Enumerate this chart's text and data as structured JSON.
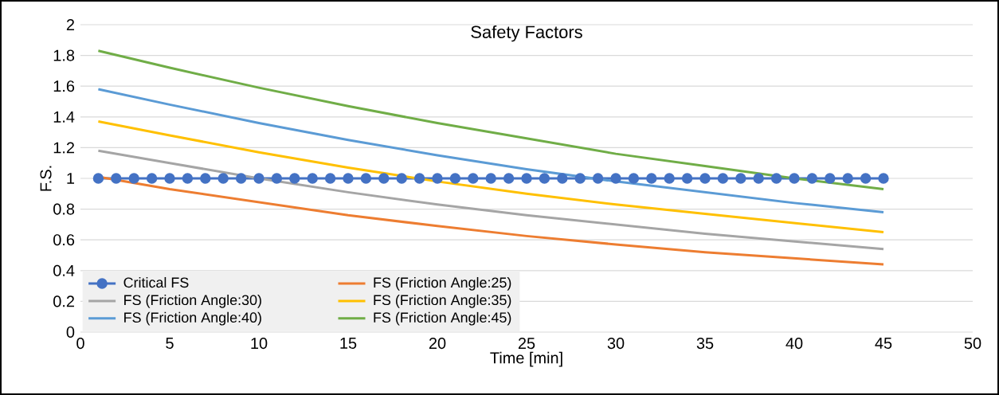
{
  "chart_data": {
    "type": "line",
    "title": "Safety Factors",
    "xlabel": "Time [min]",
    "ylabel": "F.S.",
    "xlim": [
      0,
      50
    ],
    "xticks": [
      0,
      5,
      10,
      15,
      20,
      25,
      30,
      35,
      40,
      45,
      50
    ],
    "ylim": [
      0,
      2
    ],
    "yticks": [
      0,
      0.2,
      0.4,
      0.6,
      0.8,
      1,
      1.2,
      1.4,
      1.6,
      1.8,
      2
    ],
    "grid": "y",
    "legend": "bottom left",
    "series": [
      {
        "name": "Critical FS",
        "color": "#4472c4",
        "marker": "circle",
        "x": [
          1,
          2,
          3,
          4,
          5,
          6,
          7,
          8,
          9,
          10,
          11,
          12,
          13,
          14,
          15,
          16,
          17,
          18,
          19,
          20,
          21,
          22,
          23,
          24,
          25,
          26,
          27,
          28,
          29,
          30,
          31,
          32,
          33,
          34,
          35,
          36,
          37,
          38,
          39,
          40,
          41,
          42,
          43,
          44,
          45
        ],
        "values": [
          1,
          1,
          1,
          1,
          1,
          1,
          1,
          1,
          1,
          1,
          1,
          1,
          1,
          1,
          1,
          1,
          1,
          1,
          1,
          1,
          1,
          1,
          1,
          1,
          1,
          1,
          1,
          1,
          1,
          1,
          1,
          1,
          1,
          1,
          1,
          1,
          1,
          1,
          1,
          1,
          1,
          1,
          1,
          1,
          1
        ]
      },
      {
        "name": "FS (Friction Angle:25)",
        "color": "#ed7d31",
        "marker": "none",
        "x": [
          1,
          5,
          10,
          15,
          20,
          25,
          30,
          35,
          40,
          45
        ],
        "values": [
          1.01,
          0.93,
          0.845,
          0.76,
          0.69,
          0.625,
          0.57,
          0.52,
          0.48,
          0.44
        ]
      },
      {
        "name": "FS (Friction Angle:30)",
        "color": "#a5a5a5",
        "marker": "none",
        "x": [
          1,
          5,
          10,
          15,
          20,
          25,
          30,
          35,
          40,
          45
        ],
        "values": [
          1.18,
          1.1,
          1.0,
          0.91,
          0.83,
          0.76,
          0.7,
          0.64,
          0.59,
          0.54
        ]
      },
      {
        "name": "FS (Friction Angle:35)",
        "color": "#ffc000",
        "marker": "none",
        "x": [
          1,
          5,
          10,
          15,
          20,
          25,
          30,
          35,
          40,
          45
        ],
        "values": [
          1.37,
          1.28,
          1.17,
          1.07,
          0.98,
          0.9,
          0.83,
          0.77,
          0.71,
          0.65
        ]
      },
      {
        "name": "FS (Friction Angle:40)",
        "color": "#5b9bd5",
        "marker": "none",
        "x": [
          1,
          5,
          10,
          15,
          20,
          25,
          30,
          35,
          40,
          45
        ],
        "values": [
          1.58,
          1.48,
          1.36,
          1.25,
          1.15,
          1.06,
          0.98,
          0.91,
          0.84,
          0.78
        ]
      },
      {
        "name": "FS (Friction Angle:45)",
        "color": "#70ad47",
        "marker": "none",
        "x": [
          1,
          5,
          10,
          15,
          20,
          25,
          30,
          35,
          40,
          45
        ],
        "values": [
          1.83,
          1.72,
          1.59,
          1.47,
          1.36,
          1.26,
          1.16,
          1.08,
          1.0,
          0.93
        ]
      }
    ]
  }
}
